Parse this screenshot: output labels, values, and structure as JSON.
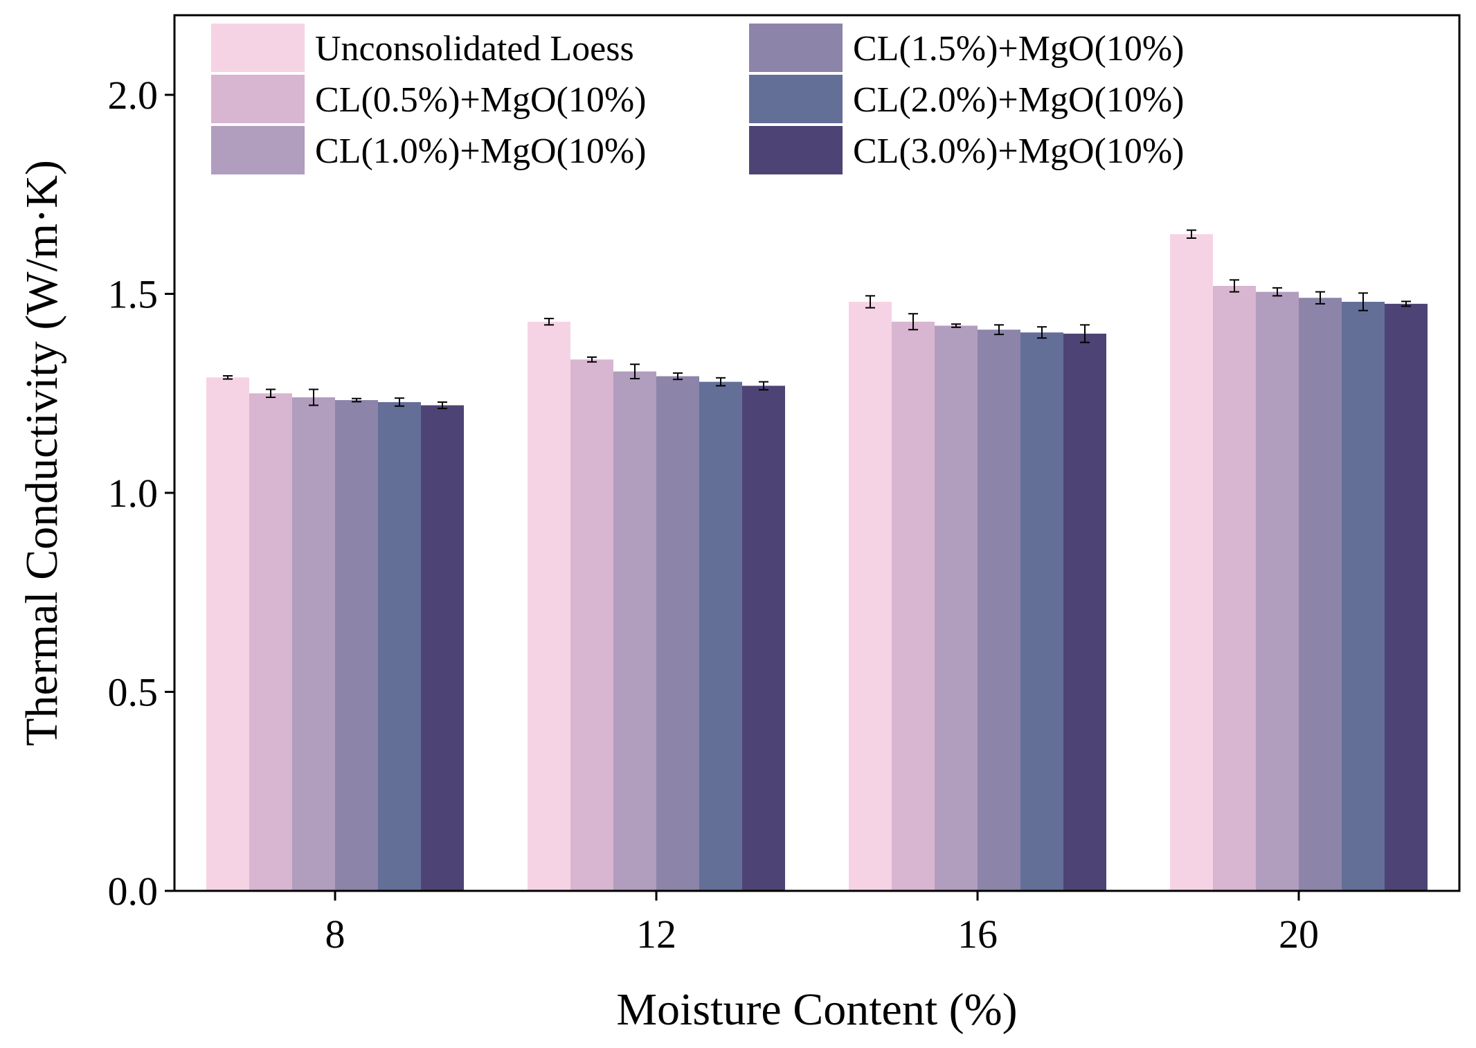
{
  "chart_data": {
    "type": "bar",
    "title": "",
    "xlabel": "Moisture Content (%)",
    "ylabel": "Thermal Conductivity (W/m·K)",
    "ylim": [
      0.0,
      2.2
    ],
    "yticks": [
      "0.0",
      "0.5",
      "1.0",
      "1.5",
      "2.0"
    ],
    "ytick_values": [
      0.0,
      0.5,
      1.0,
      1.5,
      2.0
    ],
    "categories": [
      "8",
      "12",
      "16",
      "20"
    ],
    "legend_position": "top-left",
    "series": [
      {
        "name": "Unconsolidated Loess",
        "color": "#f6d3e4",
        "values": [
          1.29,
          1.43,
          1.48,
          1.65
        ],
        "errors": [
          0.004,
          0.008,
          0.015,
          0.01
        ]
      },
      {
        "name": "CL(0.5%)+MgO(10%)",
        "color": "#d8b5d0",
        "values": [
          1.25,
          1.335,
          1.43,
          1.52
        ],
        "errors": [
          0.01,
          0.006,
          0.02,
          0.015
        ]
      },
      {
        "name": "CL(1.0%)+MgO(10%)",
        "color": "#b19dbe",
        "values": [
          1.24,
          1.305,
          1.42,
          1.505
        ],
        "errors": [
          0.02,
          0.018,
          0.004,
          0.01
        ]
      },
      {
        "name": "CL(1.5%)+MgO(10%)",
        "color": "#8c84a9",
        "values": [
          1.233,
          1.293,
          1.41,
          1.49
        ],
        "errors": [
          0.004,
          0.008,
          0.012,
          0.015
        ]
      },
      {
        "name": "CL(2.0%)+MgO(10%)",
        "color": "#646f98",
        "values": [
          1.228,
          1.279,
          1.403,
          1.48
        ],
        "errors": [
          0.01,
          0.01,
          0.014,
          0.022
        ]
      },
      {
        "name": "CL(3.0%)+MgO(10%)",
        "color": "#4d4374",
        "values": [
          1.22,
          1.269,
          1.4,
          1.475
        ],
        "errors": [
          0.008,
          0.01,
          0.022,
          0.006
        ]
      }
    ]
  }
}
